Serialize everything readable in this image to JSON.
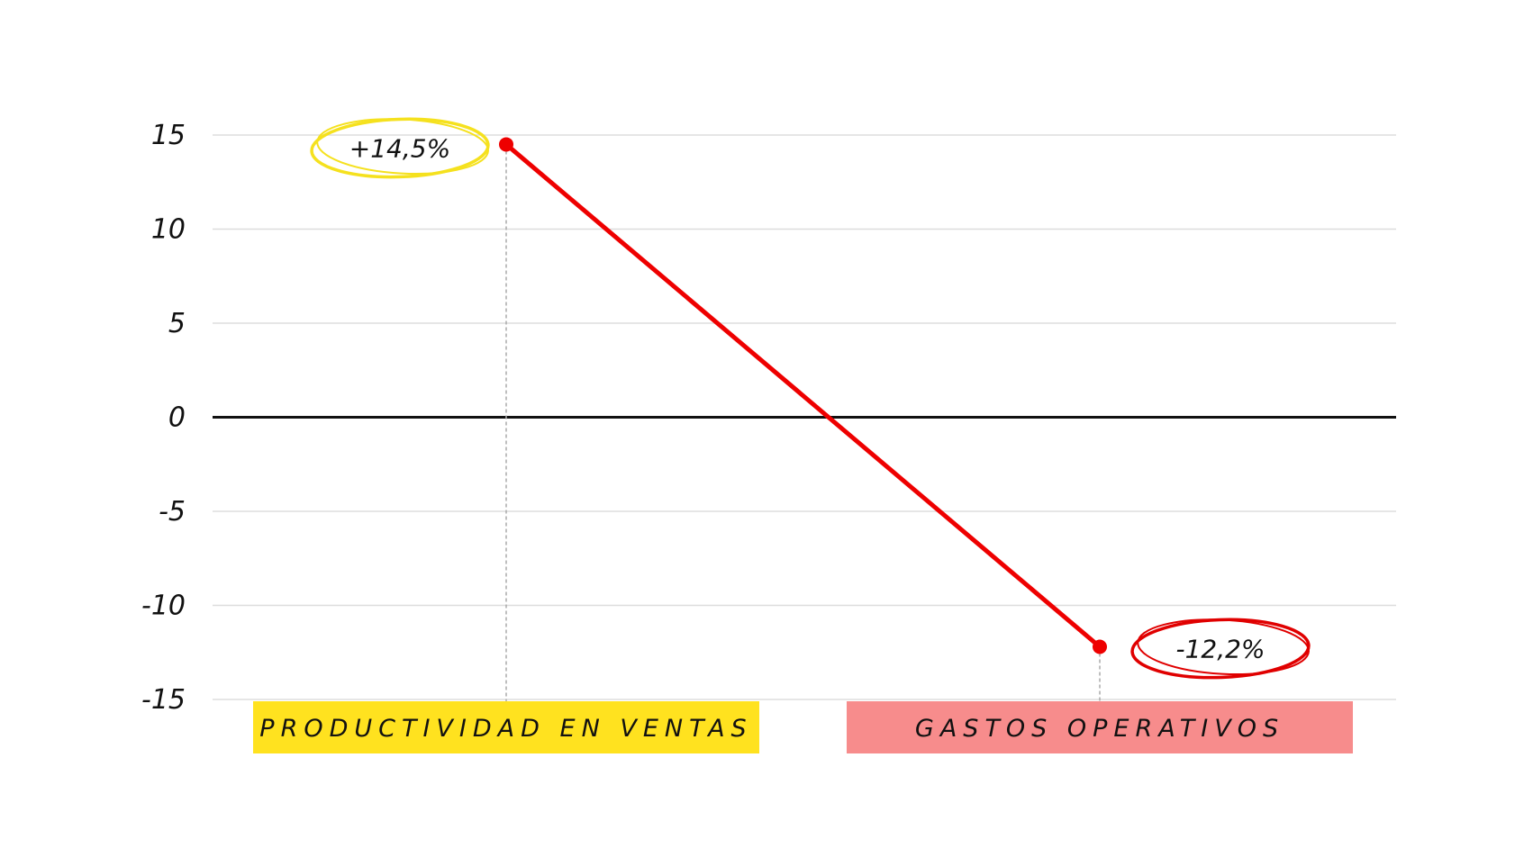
{
  "chart_data": {
    "type": "line",
    "categories": [
      "PRODUCTIVIDAD EN VENTAS",
      "GASTOS OPERATIVOS"
    ],
    "values": [
      14.5,
      -12.2
    ],
    "data_labels": [
      "+14,5%",
      "-12,2%"
    ],
    "yticks": [
      15,
      10,
      5,
      0,
      -5,
      -10,
      -15
    ],
    "ylim": [
      -15,
      15
    ],
    "grid": true,
    "colors": {
      "line": "#ee0000",
      "positive_highlight": "#ffe21f",
      "negative_highlight": "#f78c8c",
      "positive_circle": "#f5e11e",
      "negative_circle": "#e00000",
      "grid": "#dddddd",
      "zero_line": "#111111"
    }
  }
}
